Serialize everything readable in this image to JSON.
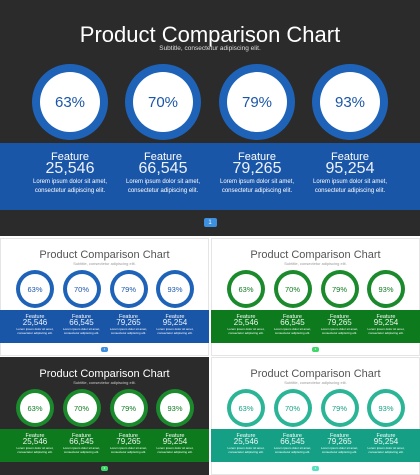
{
  "title": "Product Comparison Chart",
  "subtitle": "Subtitle, consectetur adipiscing elit.",
  "description_line1": "Lorem ipsum dolor sit amet,",
  "description_line2": "consectetur adipiscing elit.",
  "feature_label": "Feature",
  "page_indicator": "1",
  "items": [
    {
      "percent": "63%",
      "value": "25,546"
    },
    {
      "percent": "70%",
      "value": "66,545"
    },
    {
      "percent": "79%",
      "value": "79,265"
    },
    {
      "percent": "93%",
      "value": "95,254"
    }
  ],
  "colors": {
    "dark_bg": "#2b2b2b",
    "blue": "#1a56a8",
    "blue_ring": "#2f6fc2",
    "green": "#0d7a1e",
    "green_ring": "#1b8a2c",
    "teal": "#15a085",
    "teal_ring": "#2bb596"
  }
}
